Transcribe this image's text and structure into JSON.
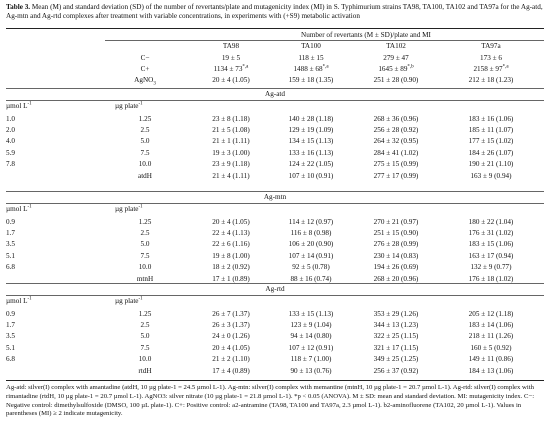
{
  "caption": {
    "label": "Table 3.",
    "text": "Mean (M) and standard deviation (SD) of the number of revertants/plate and mutagenicity index (MI) in S. Typhimurium strains TA98, TA100, TA102 and TA97a for the Ag-atd, Ag-mtn and Ag-rtd complexes after treatment with variable concentrations, in experiments with (+S9) metabolic activation"
  },
  "header": {
    "group_title": "Number of revertants (M ± SD)/plate and MI",
    "strains": [
      "TA98",
      "TA100",
      "TA102",
      "TA97a"
    ]
  },
  "controls": [
    {
      "label": "C−",
      "values": [
        "19 ± 5",
        "118 ± 15",
        "279 ± 47",
        "173 ± 6"
      ]
    },
    {
      "label": "C+",
      "values": [
        "1134 ± 73*,a",
        "1488 ± 68*,a",
        "1645 ± 89*,b",
        "2158 ± 97*,a"
      ]
    },
    {
      "label": "AgNO3",
      "values": [
        "20 ± 4 (1.05)",
        "159 ± 18 (1.35)",
        "251 ± 28 (0.90)",
        "212 ± 18 (1.23)"
      ]
    }
  ],
  "sections": [
    {
      "title": "Ag-atd",
      "unit_left": "µmol L-1",
      "unit_right": "µg plate-1",
      "rows": [
        {
          "umol": "1.0",
          "ug": "1.25",
          "values": [
            "23 ± 8 (1.18)",
            "140 ± 28 (1.18)",
            "268 ± 36 (0.96)",
            "183 ± 16 (1.06)"
          ]
        },
        {
          "umol": "2.0",
          "ug": "2.5",
          "values": [
            "21 ± 5 (1.08)",
            "129 ± 19 (1.09)",
            "256 ± 28 (0.92)",
            "185 ± 11 (1.07)"
          ]
        },
        {
          "umol": "4.0",
          "ug": "5.0",
          "values": [
            "21 ± 1 (1.11)",
            "134 ± 15 (1.13)",
            "264 ± 32 (0.95)",
            "177 ± 15 (1.02)"
          ]
        },
        {
          "umol": "5.9",
          "ug": "7.5",
          "values": [
            "19 ± 3 (1.00)",
            "133 ± 16 (1.13)",
            "284 ± 41 (1.02)",
            "184 ± 26 (1.07)"
          ]
        },
        {
          "umol": "7.8",
          "ug": "10.0",
          "values": [
            "23 ± 9 (1.18)",
            "124 ± 22 (1.05)",
            "275 ± 15 (0.99)",
            "190 ± 21 (1.10)"
          ]
        },
        {
          "umol": "",
          "ug": "atdH",
          "values": [
            "21 ± 4 (1.11)",
            "107 ± 10 (0.91)",
            "277 ± 17 (0.99)",
            "163 ± 9 (0.94)"
          ]
        }
      ]
    },
    {
      "title": "Ag-mtn",
      "unit_left": "µmol L-1",
      "unit_right": "µg plate-1",
      "rows": [
        {
          "umol": "0.9",
          "ug": "1.25",
          "values": [
            "20 ± 4 (1.05)",
            "114 ± 12 (0.97)",
            "270 ± 21 (0.97)",
            "180 ± 22 (1.04)"
          ]
        },
        {
          "umol": "1.7",
          "ug": "2.5",
          "values": [
            "22 ± 4 (1.13)",
            "116 ± 8 (0.98)",
            "251 ± 15 (0.90)",
            "176 ± 31 (1.02)"
          ]
        },
        {
          "umol": "3.5",
          "ug": "5.0",
          "values": [
            "22 ± 6 (1.16)",
            "106 ± 20 (0.90)",
            "276 ± 28 (0.99)",
            "183 ± 15 (1.06)"
          ]
        },
        {
          "umol": "5.1",
          "ug": "7.5",
          "values": [
            "19 ± 8 (1.00)",
            "107 ± 14 (0.91)",
            "230 ± 14 (0.83)",
            "163 ± 17 (0.94)"
          ]
        },
        {
          "umol": "6.8",
          "ug": "10.0",
          "values": [
            "18 ± 2 (0.92)",
            "92 ± 5 (0.78)",
            "194 ± 26 (0.69)",
            "132 ± 9 (0.77)"
          ]
        },
        {
          "umol": "",
          "ug": "mtnH",
          "values": [
            "17 ± 1 (0.89)",
            "88 ± 16 (0.74)",
            "268 ± 20 (0.96)",
            "176 ± 18 (1.02)"
          ]
        }
      ]
    },
    {
      "title": "Ag-rtd",
      "unit_left": "µmol L-1",
      "unit_right": "µg plate-1",
      "rows": [
        {
          "umol": "0.9",
          "ug": "1.25",
          "values": [
            "26 ± 7 (1.37)",
            "133 ± 15 (1.13)",
            "353 ± 29 (1.26)",
            "205 ± 12 (1.18)"
          ]
        },
        {
          "umol": "1.7",
          "ug": "2.5",
          "values": [
            "26 ± 3 (1.37)",
            "123 ± 9 (1.04)",
            "344 ± 13 (1.23)",
            "183 ± 14 (1.06)"
          ]
        },
        {
          "umol": "3.5",
          "ug": "5.0",
          "values": [
            "24 ± 0 (1.26)",
            "94 ± 14 (0.80)",
            "322 ± 25 (1.15)",
            "218 ± 11 (1.26)"
          ]
        },
        {
          "umol": "5.1",
          "ug": "7.5",
          "values": [
            "20 ± 4 (1.05)",
            "107 ± 12 (0.91)",
            "321 ± 17 (1.15)",
            "160 ± 5 (0.92)"
          ]
        },
        {
          "umol": "6.8",
          "ug": "10.0",
          "values": [
            "21 ± 2 (1.10)",
            "118 ± 7 (1.00)",
            "349 ± 25 (1.25)",
            "149 ± 11 (0.86)"
          ]
        },
        {
          "umol": "",
          "ug": "rtdH",
          "values": [
            "17 ± 4 (0.89)",
            "90 ± 13 (0.76)",
            "256 ± 37 (0.92)",
            "184 ± 13 (1.06)"
          ]
        }
      ]
    }
  ],
  "footnote": "Ag-atd: silver(I) complex with amantadine (atdH, 10 µg plate-1 = 24.5 µmol L-1). Ag-mtn: silver(I) complex with memantine (mtnH, 10 µg plate-1 = 20.7 µmol L-1). Ag-rtd: silver(I) complex with rimantadine (rtdH, 10 µg plate-1 = 20.7 µmol L-1). AgNO3: silver nitrate (10 µg plate-1 = 21.8 µmol L-1). *p < 0.05 (ANOVA). M ± SD: mean and standard deviation. MI: mutagenicity index. C−: Negative control: dimethylsulfoxide (DMSO, 100 µL plate-1). C+: Positive control: a2-antramine (TA98, TA100 and TA97a, 2.3 µmol L-1). b2-aminofluorene (TA102, 20 µmol L-1). Values in parentheses (MI) ≥ 2 indicate mutagenicity."
}
